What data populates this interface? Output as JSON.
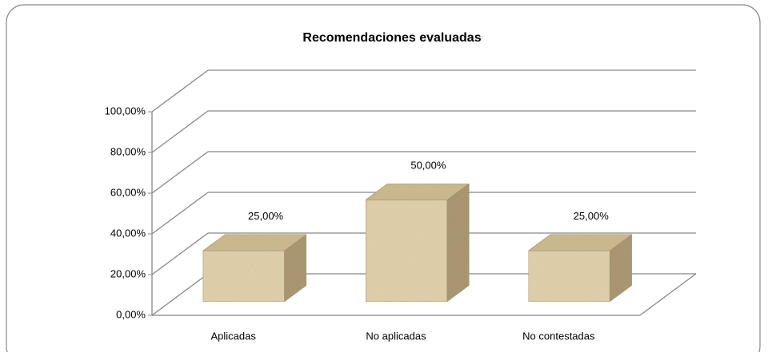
{
  "chart_data": {
    "type": "bar3d",
    "title": "Recomendaciones evaluadas",
    "categories": [
      "Aplicadas",
      "No aplicadas",
      "No contestadas"
    ],
    "values": [
      25,
      50,
      25
    ],
    "value_labels": [
      "25,00%",
      "50,00%",
      "25,00%"
    ],
    "color": "#e6d6b0",
    "ylim": [
      0,
      100
    ],
    "yticks": [
      {
        "value": 0,
        "label": "0,00%"
      },
      {
        "value": 20,
        "label": "20,00%"
      },
      {
        "value": 40,
        "label": "40,00%"
      },
      {
        "value": 60,
        "label": "60,00%"
      },
      {
        "value": 80,
        "label": "80,00%"
      },
      {
        "value": 100,
        "label": "100,00%"
      }
    ],
    "grid": true
  }
}
